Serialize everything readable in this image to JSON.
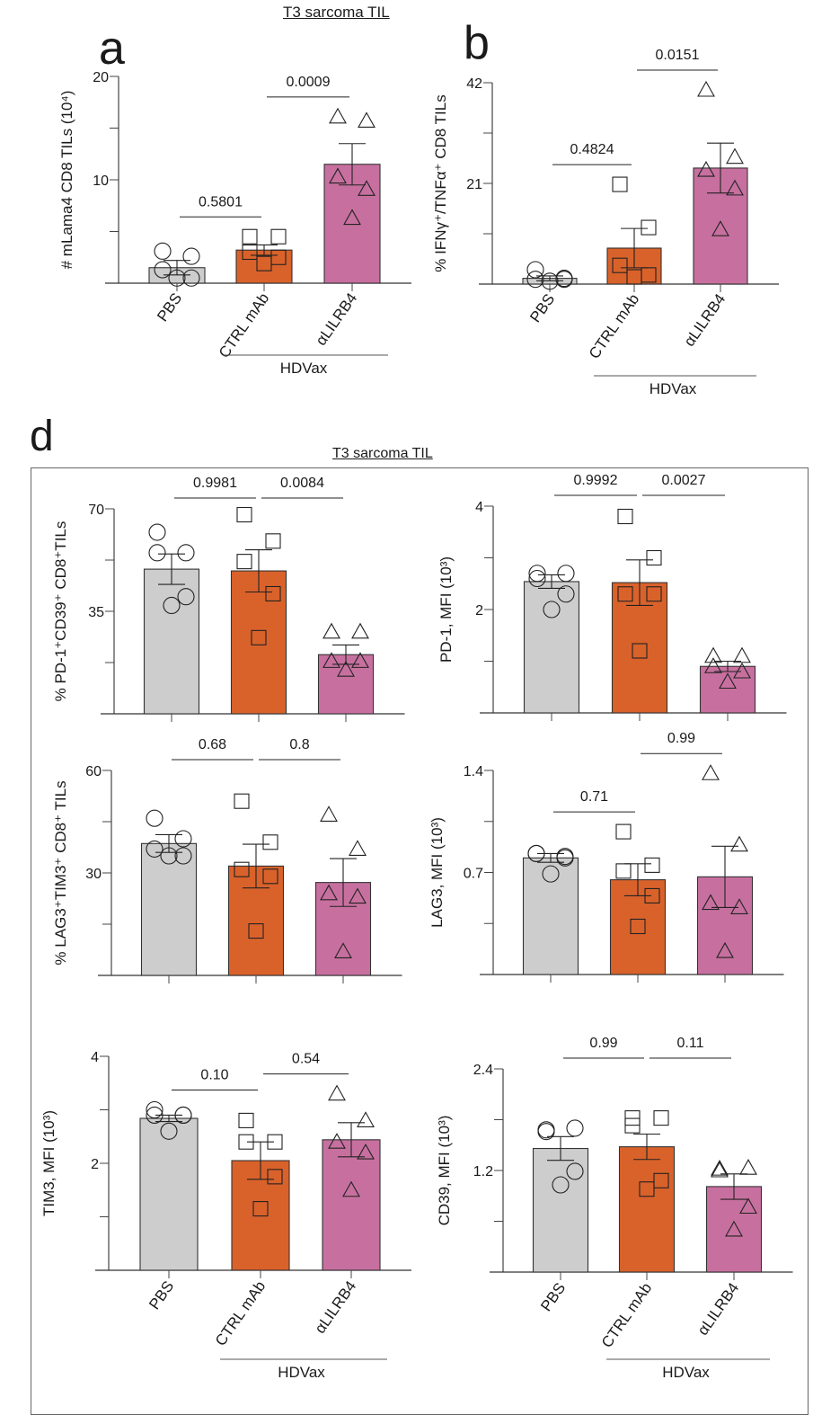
{
  "figure": {
    "titles": {
      "top": "T3 sarcoma TIL",
      "d": "T3 sarcoma TIL"
    },
    "panel_letters": {
      "a": "a",
      "b": "b",
      "d": "d"
    },
    "group_bracket_label": "HDVax",
    "colors": {
      "PBS": "#cdcdcd",
      "CTRL mAb": "#d9622b",
      "αLILRB4": "#c7709f"
    }
  },
  "chart_data": [
    {
      "id": "a",
      "type": "bar",
      "title": "",
      "categories": [
        "PBS",
        "CTRL mAb",
        "αLILRB4"
      ],
      "ylabel": "# mLama4 CD8 TILs (10⁴)",
      "ylim": [
        0,
        20
      ],
      "yticks": [
        0,
        5,
        10,
        15,
        20
      ],
      "ytick_labels": [
        "",
        "",
        "10",
        "",
        "20"
      ],
      "means": [
        1.5,
        3.2,
        11.5
      ],
      "sem": [
        0.7,
        0.5,
        2.0
      ],
      "points": [
        [
          3.1,
          2.6,
          1.3,
          0.5,
          0.5
        ],
        [
          4.5,
          4.5,
          3.0,
          2.5,
          1.9
        ],
        [
          16.1,
          15.7,
          10.3,
          9.1,
          6.3
        ]
      ],
      "comparisons": [
        {
          "from": 0,
          "to": 1,
          "label": "0.5801"
        },
        {
          "from": 1,
          "to": 2,
          "label": "0.0009"
        }
      ],
      "show_xlabels": true,
      "grid": false
    },
    {
      "id": "b",
      "type": "bar",
      "categories": [
        "PBS",
        "CTRL mAb",
        "αLILRB4"
      ],
      "ylabel": "% IFNγ⁺/TNFα⁺ CD8 TILs",
      "ylim": [
        0,
        42
      ],
      "yticks": [
        0,
        10.5,
        21,
        31.5,
        42
      ],
      "ytick_labels": [
        "",
        "",
        "21",
        "",
        "42"
      ],
      "means": [
        1.2,
        7.5,
        24.2
      ],
      "sem": [
        0.5,
        4.1,
        5.2
      ],
      "points": [
        [
          3.0,
          1.2,
          1.0,
          1.0,
          0.6
        ],
        [
          20.8,
          11.8,
          3.9,
          1.9,
          1.5
        ],
        [
          40.5,
          26.5,
          23.8,
          19.9,
          11.4
        ]
      ],
      "comparisons": [
        {
          "from": 0,
          "to": 1,
          "label": "0.4824"
        },
        {
          "from": 1,
          "to": 2,
          "label": "0.0151"
        }
      ],
      "show_xlabels": true,
      "grid": false
    },
    {
      "id": "d1",
      "type": "bar",
      "categories": [
        "PBS",
        "CTRL mAb",
        "αLILRB4"
      ],
      "ylabel": "% PD-1⁺CD39⁺ CD8⁺TILs",
      "ylim": [
        0,
        70
      ],
      "yticks": [
        0,
        17.5,
        35,
        52.5,
        70
      ],
      "ytick_labels": [
        "",
        "",
        "35",
        "",
        "70"
      ],
      "means": [
        49.4,
        48.8,
        20.2
      ],
      "sem": [
        5.2,
        7.2,
        3.3
      ],
      "points": [
        [
          62,
          55,
          55,
          40,
          37
        ],
        [
          68,
          59,
          52,
          41,
          26
        ],
        [
          28,
          28,
          18,
          18,
          15
        ]
      ],
      "comparisons": [
        {
          "from": 0,
          "to": 1,
          "label": "0.9981"
        },
        {
          "from": 1,
          "to": 2,
          "label": "0.0084"
        }
      ],
      "show_xlabels": false,
      "grid": false
    },
    {
      "id": "d2",
      "type": "bar",
      "categories": [
        "PBS",
        "CTRL mAb",
        "αLILRB4"
      ],
      "ylabel": "PD-1, MFI (10³)",
      "ylim": [
        0,
        4
      ],
      "yticks": [
        0,
        1,
        2,
        3,
        4
      ],
      "ytick_labels": [
        "",
        "",
        "2",
        "",
        "4"
      ],
      "means": [
        2.54,
        2.52,
        0.9
      ],
      "sem": [
        0.13,
        0.44,
        0.1
      ],
      "points": [
        [
          2.7,
          2.7,
          2.6,
          2.3,
          2.0
        ],
        [
          3.8,
          3.0,
          2.3,
          2.3,
          1.2
        ],
        [
          1.1,
          1.1,
          0.9,
          0.8,
          0.6
        ]
      ],
      "comparisons": [
        {
          "from": 0,
          "to": 1,
          "label": "0.9992"
        },
        {
          "from": 1,
          "to": 2,
          "label": "0.0027"
        }
      ],
      "show_xlabels": false,
      "grid": false
    },
    {
      "id": "d3",
      "type": "bar",
      "categories": [
        "PBS",
        "CTRL mAb",
        "αLILRB4"
      ],
      "ylabel": "% LAG3⁺TIM3⁺ CD8⁺ TILs",
      "ylim": [
        0,
        60
      ],
      "yticks": [
        0,
        15,
        30,
        45,
        60
      ],
      "ytick_labels": [
        "",
        "",
        "30",
        "",
        "60"
      ],
      "means": [
        38.6,
        32.0,
        27.2
      ],
      "sem": [
        2.6,
        6.4,
        7.0
      ],
      "points": [
        [
          46,
          40,
          37,
          35,
          35
        ],
        [
          51,
          39,
          31,
          29,
          13
        ],
        [
          47,
          37,
          24,
          23,
          7
        ]
      ],
      "comparisons": [
        {
          "from": 0,
          "to": 1,
          "label": "0.68"
        },
        {
          "from": 1,
          "to": 2,
          "label": "0.8"
        }
      ],
      "show_xlabels": false,
      "grid": false
    },
    {
      "id": "d4",
      "type": "bar",
      "categories": [
        "PBS",
        "CTRL mAb",
        "αLILRB4"
      ],
      "ylabel": "LAG3, MFI (10³)",
      "ylim": [
        0,
        1.4
      ],
      "yticks": [
        0,
        0.35,
        0.7,
        1.05,
        1.4
      ],
      "ytick_labels": [
        "",
        "",
        "0.7",
        "",
        "1.4"
      ],
      "means": [
        0.8,
        0.65,
        0.67
      ],
      "sem": [
        0.03,
        0.11,
        0.21
      ],
      "points": [
        [
          0.83,
          0.81,
          0.83,
          0.8,
          0.69
        ],
        [
          0.98,
          0.75,
          0.71,
          0.54,
          0.33
        ],
        [
          1.38,
          0.89,
          0.49,
          0.46,
          0.16
        ]
      ],
      "comparisons": [
        {
          "from": 0,
          "to": 1,
          "label": "0.71"
        },
        {
          "from": 1,
          "to": 2,
          "label": "0.99"
        }
      ],
      "show_xlabels": false,
      "grid": false
    },
    {
      "id": "d5",
      "type": "bar",
      "categories": [
        "PBS",
        "CTRL mAb",
        "αLILRB4"
      ],
      "ylabel": "TIM3, MFI (10³)",
      "ylim": [
        0,
        4
      ],
      "yticks": [
        0,
        1,
        2,
        3,
        4
      ],
      "ytick_labels": [
        "",
        "",
        "2",
        "",
        "4"
      ],
      "means": [
        2.84,
        2.05,
        2.44
      ],
      "sem": [
        0.06,
        0.35,
        0.32
      ],
      "points": [
        [
          3.0,
          2.9,
          2.9,
          2.9,
          2.6
        ],
        [
          2.8,
          2.4,
          2.4,
          1.75,
          1.15
        ],
        [
          3.3,
          2.8,
          2.4,
          2.2,
          1.5
        ]
      ],
      "comparisons": [
        {
          "from": 0,
          "to": 1,
          "label": "0.10"
        },
        {
          "from": 1,
          "to": 2,
          "label": "0.54"
        }
      ],
      "show_xlabels": true,
      "grid": false
    },
    {
      "id": "d6",
      "type": "bar",
      "categories": [
        "PBS",
        "CTRL mAb",
        "αLILRB4"
      ],
      "ylabel": "CD39, MFI (10³)",
      "ylim": [
        0,
        2.4
      ],
      "yticks": [
        0,
        0.6,
        1.2,
        1.8,
        2.4
      ],
      "ytick_labels": [
        "",
        "",
        "1.2",
        "",
        "2.4"
      ],
      "means": [
        1.46,
        1.48,
        1.01
      ],
      "sem": [
        0.14,
        0.15,
        0.15
      ],
      "points": [
        [
          1.68,
          1.7,
          1.66,
          1.19,
          1.03
        ],
        [
          1.82,
          1.82,
          1.73,
          1.08,
          0.98
        ],
        [
          1.22,
          1.23,
          1.2,
          0.77,
          0.5
        ]
      ],
      "comparisons": [
        {
          "from": 0,
          "to": 1,
          "label": "0.99"
        },
        {
          "from": 1,
          "to": 2,
          "label": "0.11"
        }
      ],
      "show_xlabels": true,
      "grid": false
    }
  ]
}
